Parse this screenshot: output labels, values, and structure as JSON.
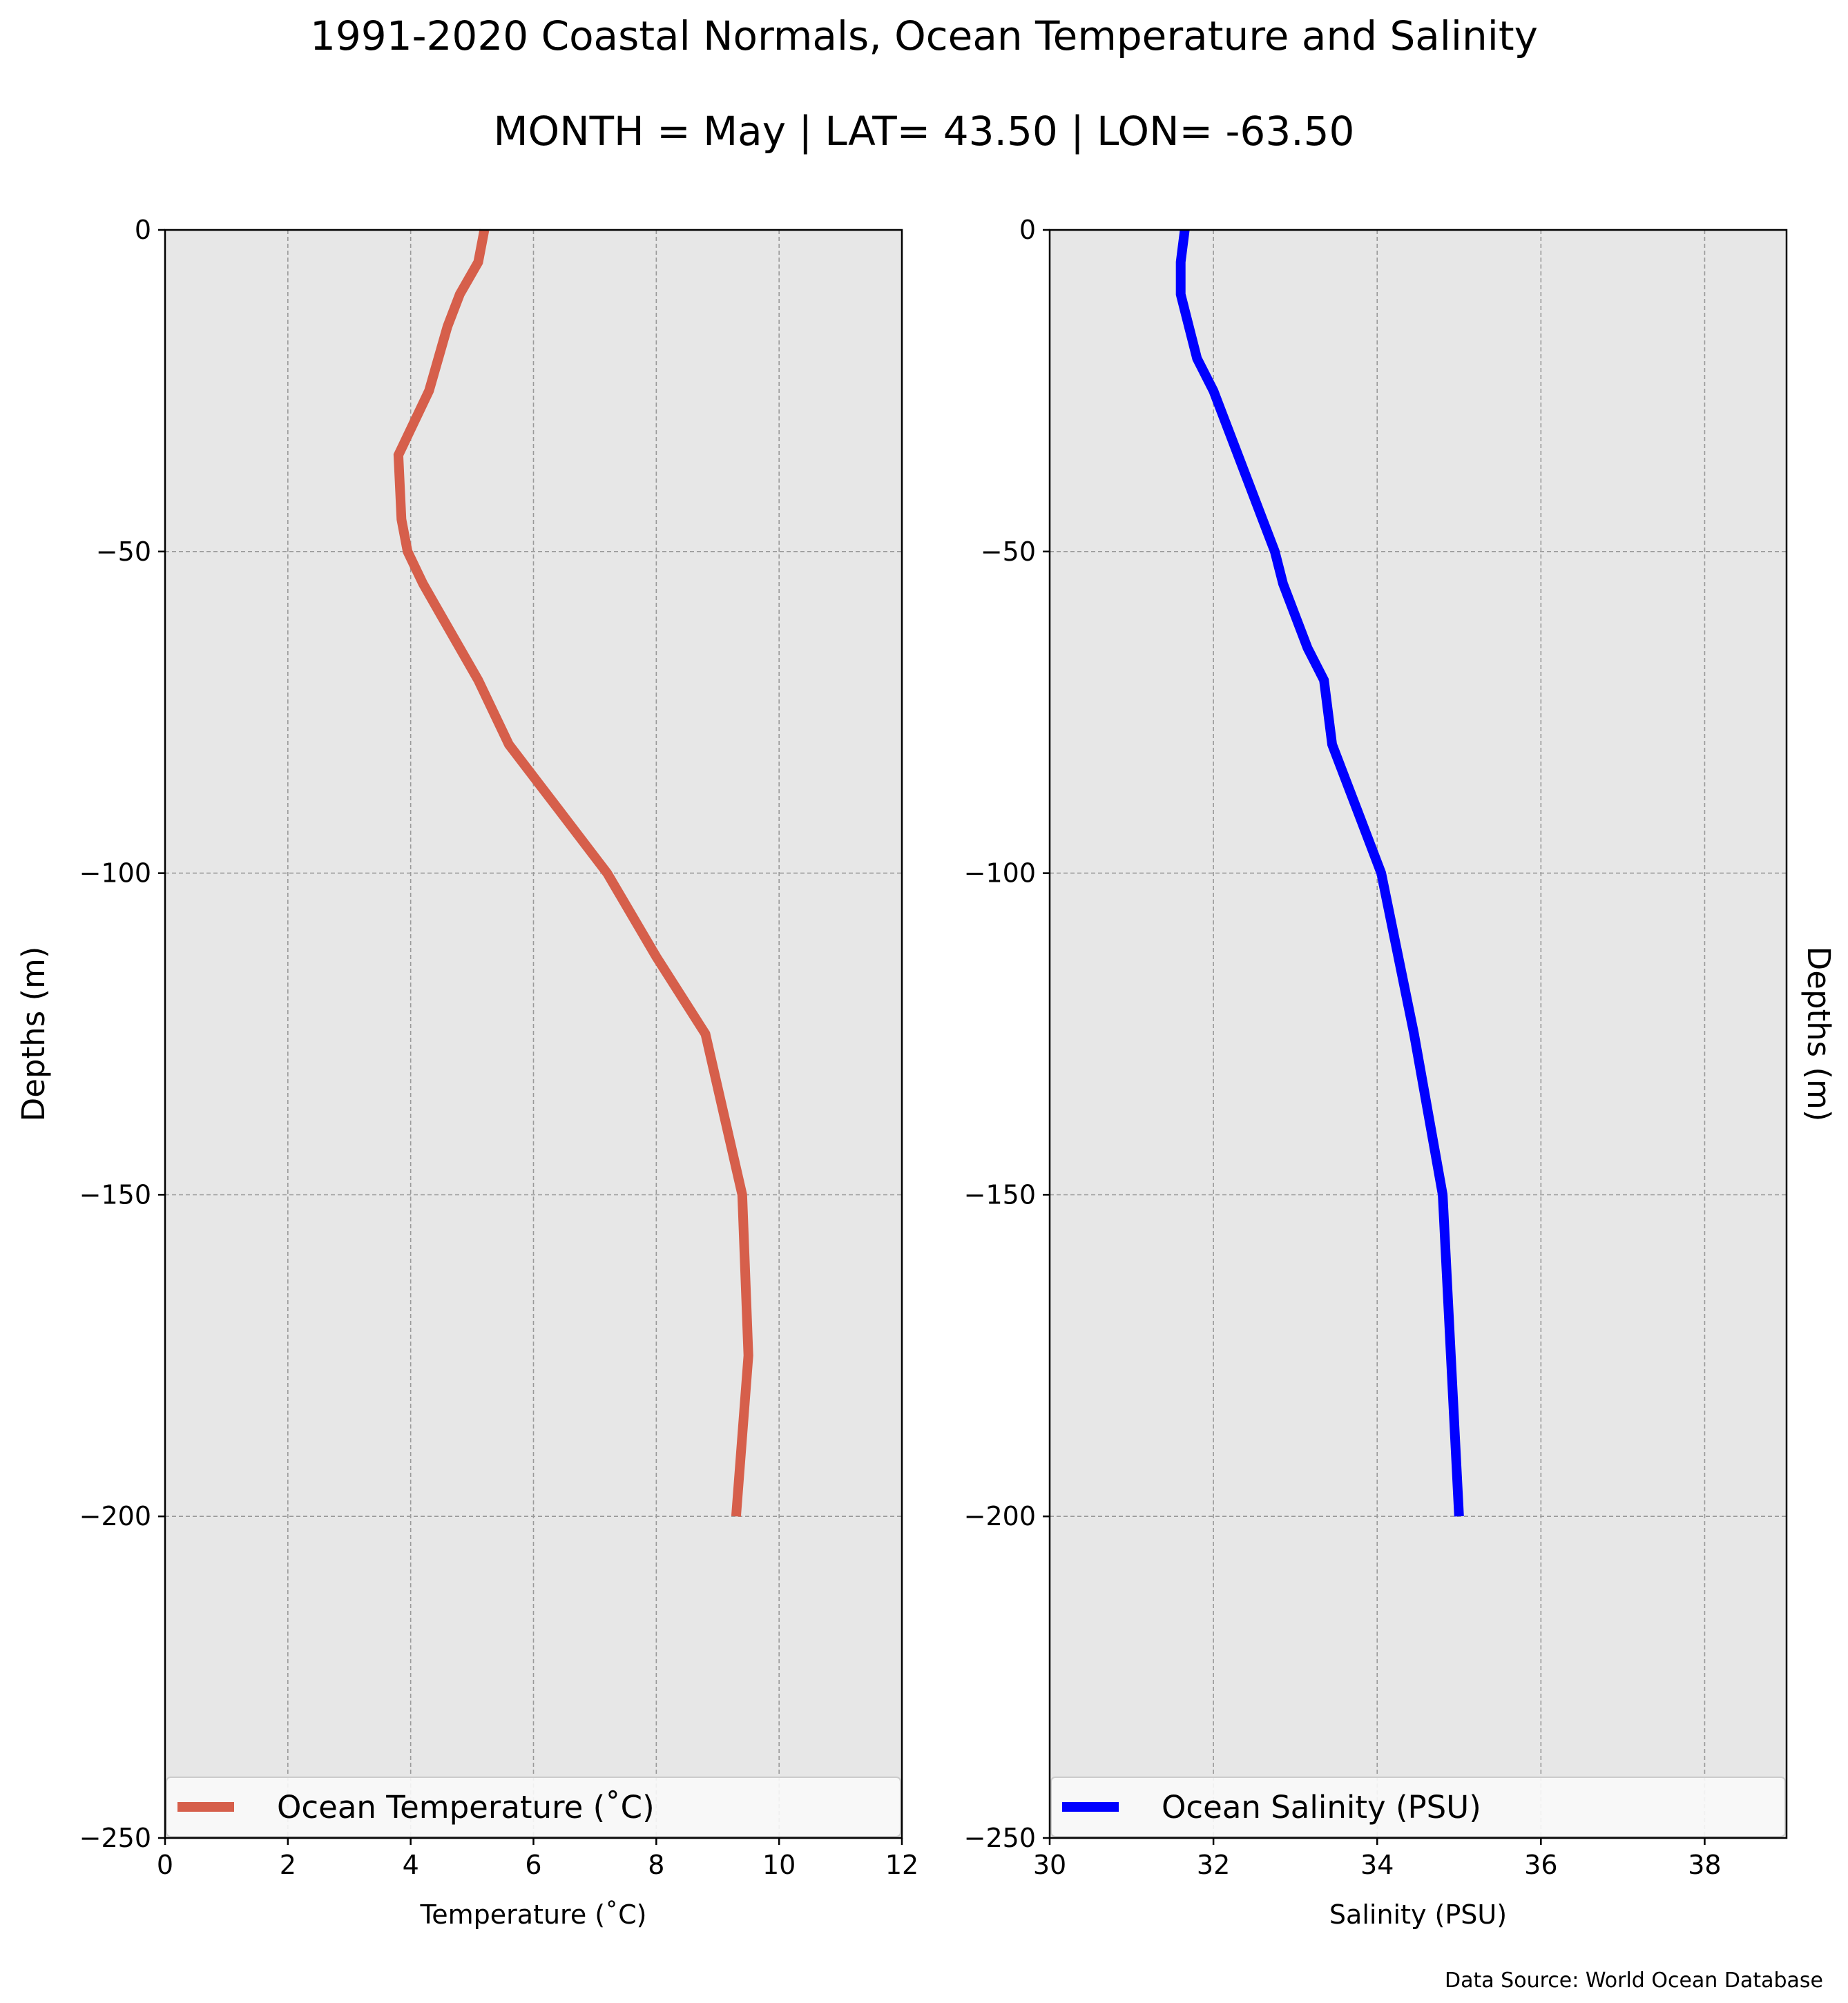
{
  "title": "1991-2020 Coastal Normals, Ocean Temperature and Salinity",
  "subtitle": "MONTH = May | LAT= 43.50 | LON= -63.50",
  "source": "Data Source: World Ocean Database",
  "chart_data": [
    {
      "type": "line",
      "xlabel": "Temperature (˚C)",
      "ylabel": "Depths (m)",
      "xlim": [
        0,
        12
      ],
      "ylim": [
        -250,
        0
      ],
      "xticks": [
        0,
        2,
        4,
        6,
        8,
        10,
        12
      ],
      "yticks": [
        0,
        -50,
        -100,
        -150,
        -200,
        -250
      ],
      "xtick_labels": [
        "0",
        "2",
        "4",
        "6",
        "8",
        "10",
        "12"
      ],
      "ytick_labels": [
        "0",
        "−50",
        "−100",
        "−150",
        "−200",
        "−250"
      ],
      "grid": true,
      "legend_position": "bottom",
      "series": [
        {
          "name": "Ocean Temperature (˚C)",
          "color": "#d65f4b",
          "x": [
            5.2,
            5.1,
            4.8,
            4.6,
            4.3,
            4.05,
            3.8,
            3.85,
            3.95,
            4.2,
            4.5,
            5.1,
            5.6,
            6.0,
            6.4,
            7.2,
            8.0,
            8.8,
            9.4,
            9.5,
            9.3
          ],
          "y": [
            0,
            -5,
            -10,
            -15,
            -25,
            -30,
            -35,
            -45,
            -50,
            -55,
            -60,
            -70,
            -80,
            -85,
            -90,
            -100,
            -113,
            -125,
            -150,
            -175,
            -200
          ]
        }
      ]
    },
    {
      "type": "line",
      "xlabel": "Salinity (PSU)",
      "ylabel": "Depths (m)",
      "xlim": [
        30,
        39
      ],
      "ylim": [
        -250,
        0
      ],
      "xticks": [
        30,
        32,
        34,
        36,
        38
      ],
      "yticks": [
        0,
        -50,
        -100,
        -150,
        -200,
        -250
      ],
      "xtick_labels": [
        "30",
        "32",
        "34",
        "36",
        "38"
      ],
      "ytick_labels": [
        "0",
        "−50",
        "−100",
        "−150",
        "−200",
        "−250"
      ],
      "grid": true,
      "legend_position": "bottom",
      "series": [
        {
          "name": "Ocean Salinity (PSU)",
          "color": "#0000ff",
          "x": [
            31.65,
            31.6,
            31.6,
            31.7,
            31.8,
            32.0,
            32.15,
            32.3,
            32.6,
            32.75,
            32.85,
            33.15,
            33.35,
            33.45,
            33.6,
            33.75,
            34.05,
            34.45,
            34.8,
            34.9,
            35.0
          ],
          "y": [
            0,
            -5,
            -10,
            -15,
            -20,
            -25,
            -30,
            -35,
            -45,
            -50,
            -55,
            -65,
            -70,
            -80,
            -85,
            -90,
            -100,
            -125,
            -150,
            -175,
            -200
          ]
        }
      ]
    }
  ]
}
